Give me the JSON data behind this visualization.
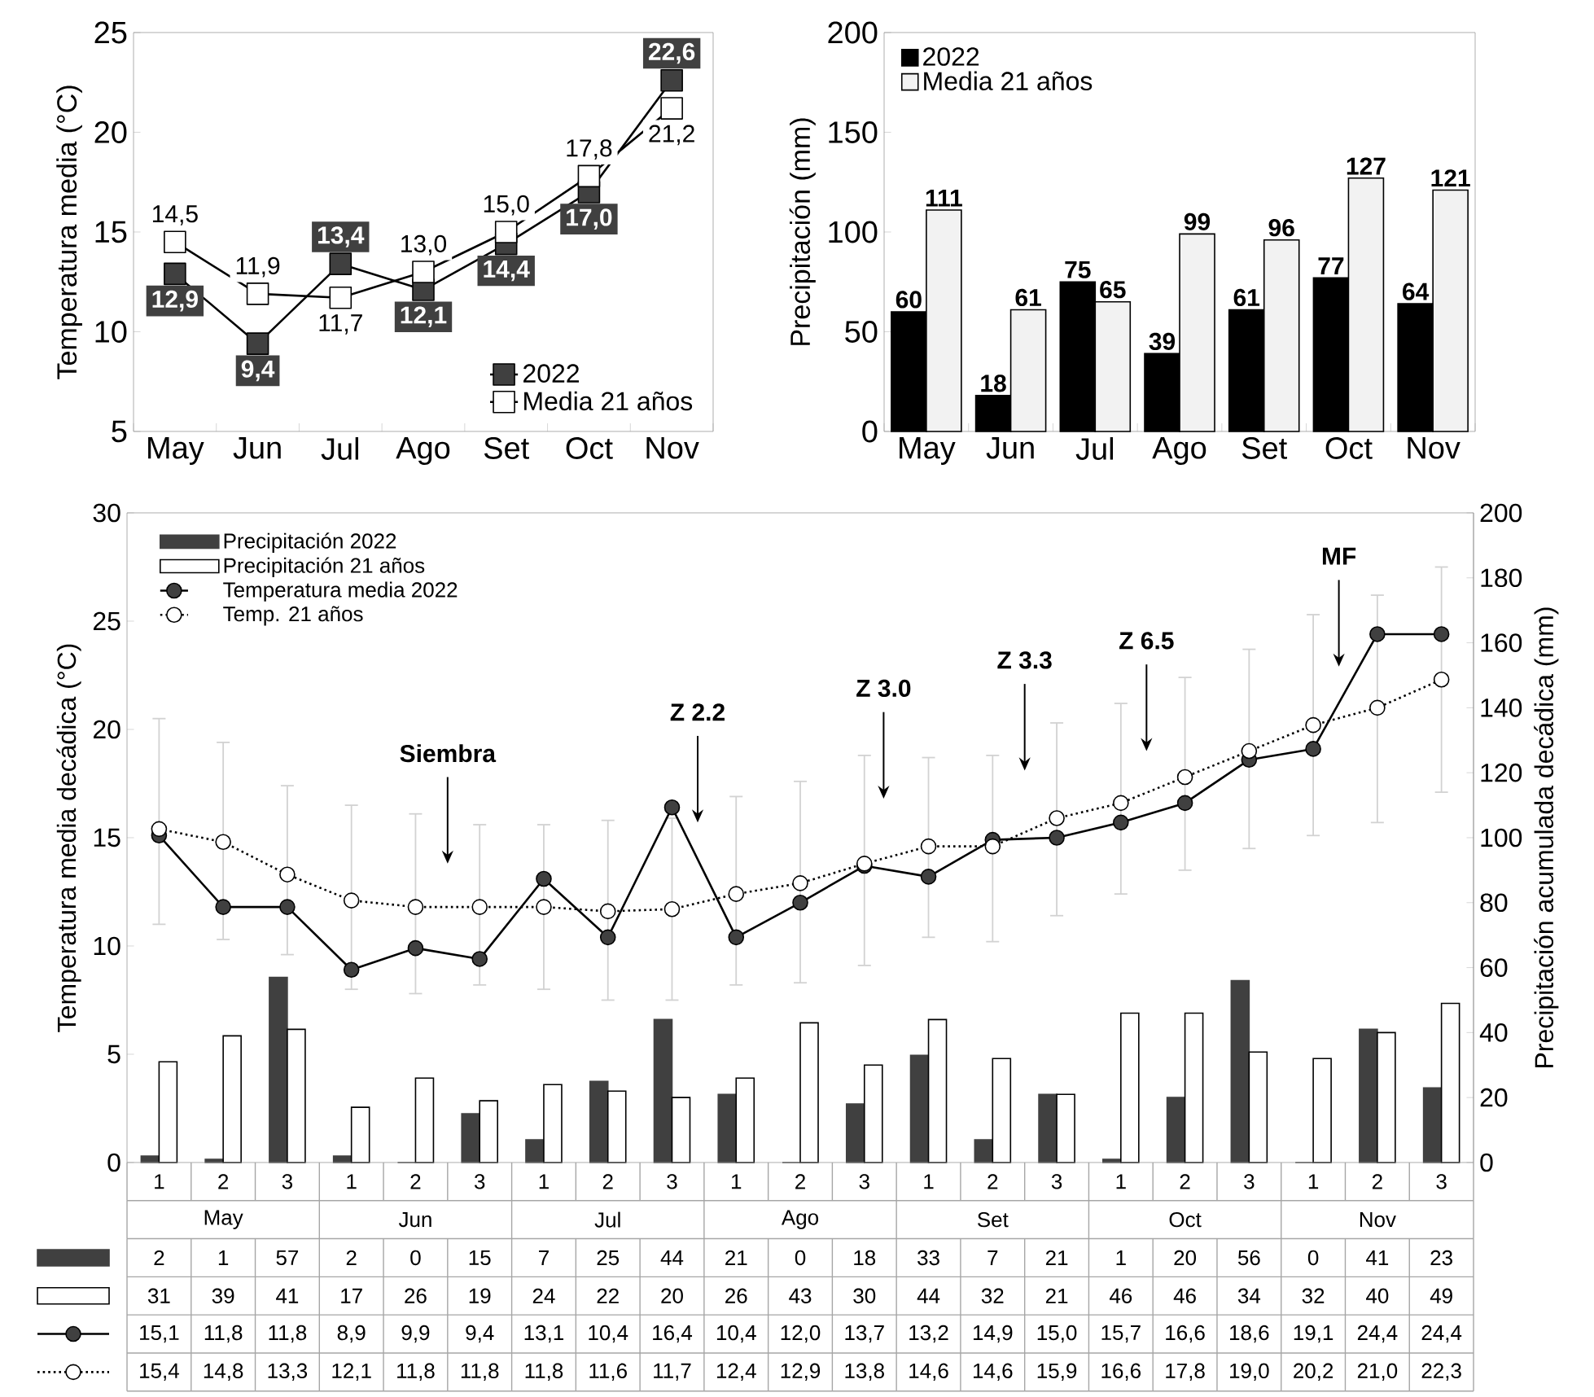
{
  "chart_data": [
    {
      "type": "line",
      "ylabel": "Temperatura media (°C)",
      "categories": [
        "May",
        "Jun",
        "Jul",
        "Ago",
        "Set",
        "Oct",
        "Nov"
      ],
      "ylim": [
        5,
        25
      ],
      "yticks": [
        5,
        10,
        15,
        20,
        25
      ],
      "marker": "square",
      "legend": "bottom right",
      "series": [
        {
          "name": "2022",
          "color": "#404040",
          "values": [
            12.9,
            9.4,
            13.4,
            12.1,
            14.4,
            17.0,
            22.6
          ],
          "value_labels": [
            "12,9",
            "9,4",
            "13,4",
            "12,1",
            "14,4",
            "17,0",
            "22,6"
          ]
        },
        {
          "name": "Media 21 años",
          "color": "#ffffff",
          "values": [
            14.5,
            11.9,
            11.7,
            13.0,
            15.0,
            17.8,
            21.2
          ],
          "value_labels": [
            "14,5",
            "11,9",
            "11,7",
            "13,0",
            "15,0",
            "17,8",
            "21,2"
          ]
        }
      ]
    },
    {
      "type": "bar",
      "ylabel": "Precipitación (mm)",
      "categories": [
        "May",
        "Jun",
        "Jul",
        "Ago",
        "Set",
        "Oct",
        "Nov"
      ],
      "ylim": [
        0,
        200
      ],
      "yticks": [
        0,
        50,
        100,
        150,
        200
      ],
      "legend": "top left",
      "data_labels": true,
      "series": [
        {
          "name": "2022",
          "color": "#000000",
          "values": [
            60,
            18,
            75,
            39,
            61,
            77,
            64
          ]
        },
        {
          "name": "Media 21 años",
          "color": "#f2f2f2",
          "values": [
            111,
            61,
            65,
            99,
            96,
            127,
            121
          ]
        }
      ]
    },
    {
      "type": "bar",
      "categories": [
        "1",
        "2",
        "3",
        "1",
        "2",
        "3",
        "1",
        "2",
        "3",
        "1",
        "2",
        "3",
        "1",
        "2",
        "3",
        "1",
        "2",
        "3",
        "1",
        "2",
        "3"
      ],
      "ylabel": "Temperatura media decádica (°C)",
      "y2label": "Precipitación acumulada decádica (mm)",
      "ylim": [
        0,
        30
      ],
      "yticks": [
        0,
        5,
        10,
        15,
        20,
        25,
        30
      ],
      "y2lim": [
        0,
        200
      ],
      "y2ticks": [
        0,
        20,
        40,
        60,
        80,
        100,
        120,
        140,
        160,
        180,
        200
      ],
      "legend": "top left",
      "series": [
        {
          "name": "Precipitación 2022",
          "type": "bar",
          "axis": "y2",
          "color": "#404040",
          "values": [
            2,
            1,
            57,
            2,
            0,
            15,
            7,
            25,
            44,
            21,
            0,
            18,
            33,
            7,
            21,
            1,
            20,
            56,
            0,
            41,
            23
          ],
          "value_labels": [
            "2",
            "1",
            "57",
            "2",
            "0",
            "15",
            "7",
            "25",
            "44",
            "21",
            "0",
            "18",
            "33",
            "7",
            "21",
            "1",
            "20",
            "56",
            "0",
            "41",
            "23"
          ]
        },
        {
          "name": "Precipitación 21 años",
          "type": "bar",
          "axis": "y2",
          "color": "#ffffff",
          "values": [
            31,
            39,
            41,
            17,
            26,
            19,
            24,
            22,
            20,
            26,
            43,
            30,
            44,
            32,
            21,
            46,
            46,
            34,
            32,
            40,
            49
          ],
          "value_labels": [
            "31",
            "39",
            "41",
            "17",
            "26",
            "19",
            "24",
            "22",
            "20",
            "26",
            "43",
            "30",
            "44",
            "32",
            "21",
            "46",
            "46",
            "34",
            "32",
            "40",
            "49"
          ]
        },
        {
          "name": "Temperatura media 2022",
          "type": "line",
          "color": "#404040",
          "marker": "circle",
          "line_style": "solid",
          "values": [
            15.1,
            11.8,
            11.8,
            8.9,
            9.9,
            9.4,
            13.1,
            10.4,
            16.4,
            10.4,
            12.0,
            13.7,
            13.2,
            14.9,
            15.0,
            15.7,
            16.6,
            18.6,
            19.1,
            24.4,
            24.4
          ],
          "value_labels": [
            "15,1",
            "11,8",
            "11,8",
            "8,9",
            "9,9",
            "9,4",
            "13,1",
            "10,4",
            "16,4",
            "10,4",
            "12,0",
            "13,7",
            "13,2",
            "14,9",
            "15,0",
            "15,7",
            "16,6",
            "18,6",
            "19,1",
            "24,4",
            "24,4"
          ]
        },
        {
          "name": "Temp. 21 años",
          "type": "line",
          "color": "#ffffff",
          "marker": "circle",
          "line_style": "dotted",
          "values": [
            15.4,
            14.8,
            13.3,
            12.1,
            11.8,
            11.8,
            11.8,
            11.6,
            11.7,
            12.4,
            12.9,
            13.8,
            14.6,
            14.6,
            15.9,
            16.6,
            17.8,
            19.0,
            20.2,
            21.0,
            22.3
          ],
          "value_labels": [
            "15,4",
            "14,8",
            "13,3",
            "12,1",
            "11,8",
            "11,8",
            "11,8",
            "11,6",
            "11,7",
            "12,4",
            "12,9",
            "13,8",
            "14,6",
            "14,6",
            "15,9",
            "16,6",
            "17,8",
            "19,0",
            "20,2",
            "21,0",
            "22,3"
          ],
          "errors": [
            [
              11.0,
              20.5
            ],
            [
              10.3,
              19.4
            ],
            [
              9.6,
              17.4
            ],
            [
              8.0,
              16.5
            ],
            [
              7.8,
              16.1
            ],
            [
              8.2,
              15.6
            ],
            [
              8.0,
              15.6
            ],
            [
              7.5,
              15.8
            ],
            [
              7.5,
              15.9
            ],
            [
              8.2,
              16.9
            ],
            [
              8.3,
              17.6
            ],
            [
              9.1,
              18.8
            ],
            [
              10.4,
              18.7
            ],
            [
              10.2,
              18.8
            ],
            [
              11.4,
              20.3
            ],
            [
              12.4,
              21.2
            ],
            [
              13.5,
              22.4
            ],
            [
              14.5,
              23.7
            ],
            [
              15.1,
              25.3
            ],
            [
              15.7,
              26.2
            ],
            [
              17.1,
              27.5
            ]
          ]
        }
      ],
      "annotations": [
        "May",
        "Jun",
        "Jul",
        "Ago",
        "Set",
        "Oct",
        "Nov",
        "Siembra",
        "Z 2.2",
        "Z 3.0",
        "Z 3.3",
        "Z 6.5",
        "MF"
      ]
    }
  ]
}
